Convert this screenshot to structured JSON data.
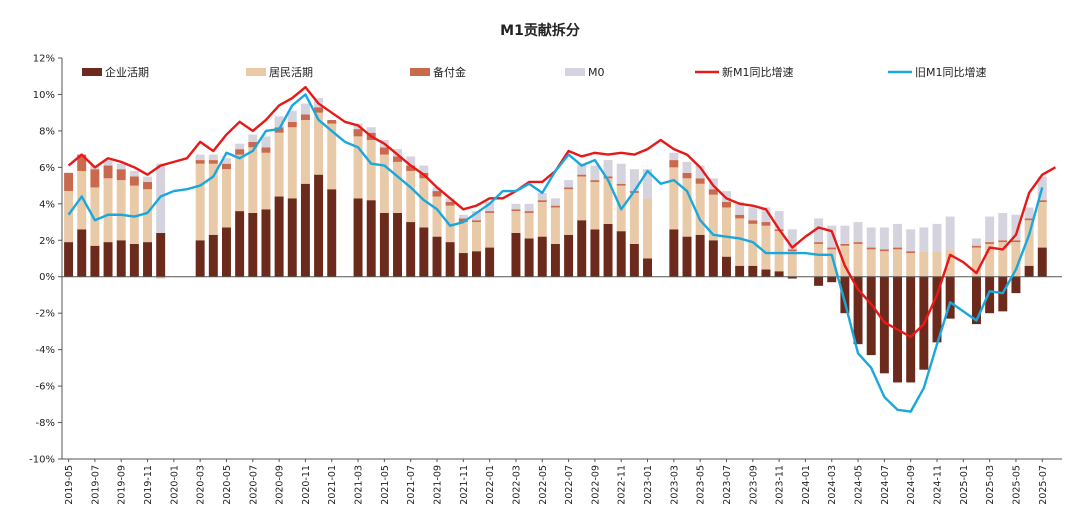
{
  "chart_data": {
    "type": "bar",
    "title": "M1贡献拆分",
    "xlabel": "",
    "ylabel": "",
    "ylim": [
      -10,
      12
    ],
    "y_ticks": [
      "-10%",
      "-8%",
      "-6%",
      "-4%",
      "-2%",
      "0%",
      "2%",
      "4%",
      "6%",
      "8%",
      "10%",
      "12%"
    ],
    "grid": false,
    "legend_position": "top",
    "x_tick_labels": [
      "2019-05",
      "2019-07",
      "2019-09",
      "2019-11",
      "2020-01",
      "2020-03",
      "2020-05",
      "2020-07",
      "2020-09",
      "2020-11",
      "2021-01",
      "2021-03",
      "2021-05",
      "2021-07",
      "2021-09",
      "2021-11",
      "2022-01",
      "2022-03",
      "2022-05",
      "2022-07",
      "2022-09",
      "2022-11",
      "2023-01",
      "2023-03",
      "2023-05",
      "2023-07",
      "2023-09",
      "2023-11",
      "2024-01",
      "2024-03",
      "2024-05",
      "2024-07",
      "2024-09",
      "2024-11",
      "2025-01",
      "2025-03",
      "2025-05",
      "2025-07"
    ],
    "x": [
      "2019-05",
      "2019-06",
      "2019-07",
      "2019-08",
      "2019-09",
      "2019-10",
      "2019-11",
      "2019-12",
      "2020-01",
      "2020-02",
      "2020-03",
      "2020-04",
      "2020-05",
      "2020-06",
      "2020-07",
      "2020-08",
      "2020-09",
      "2020-10",
      "2020-11",
      "2020-12",
      "2021-01",
      "2021-02",
      "2021-03",
      "2021-04",
      "2021-05",
      "2021-06",
      "2021-07",
      "2021-08",
      "2021-09",
      "2021-10",
      "2021-11",
      "2021-12",
      "2022-01",
      "2022-02",
      "2022-03",
      "2022-04",
      "2022-05",
      "2022-06",
      "2022-07",
      "2022-08",
      "2022-09",
      "2022-10",
      "2022-11",
      "2022-12",
      "2023-01",
      "2023-02",
      "2023-03",
      "2023-04",
      "2023-05",
      "2023-06",
      "2023-07",
      "2023-08",
      "2023-09",
      "2023-10",
      "2023-11",
      "2023-12",
      "2024-01",
      "2024-02",
      "2024-03",
      "2024-04",
      "2024-05",
      "2024-06",
      "2024-07",
      "2024-08",
      "2024-09",
      "2024-10",
      "2024-11",
      "2024-12",
      "2025-01",
      "2025-02",
      "2025-03",
      "2025-04",
      "2025-05",
      "2025-06",
      "2025-07",
      "2025-08"
    ],
    "bar_series": [
      {
        "name": "企业活期",
        "color": "#6b2a1c",
        "values": [
          1.9,
          2.6,
          1.7,
          1.9,
          2.0,
          1.8,
          1.9,
          2.4,
          null,
          null,
          2.0,
          2.3,
          2.7,
          3.6,
          3.5,
          3.7,
          4.4,
          4.3,
          5.1,
          5.6,
          4.8,
          null,
          4.3,
          4.2,
          3.5,
          3.5,
          3.0,
          2.7,
          2.2,
          1.9,
          1.3,
          1.4,
          1.6,
          null,
          2.4,
          2.1,
          2.2,
          1.8,
          2.3,
          3.1,
          2.6,
          2.9,
          2.5,
          1.8,
          1.0,
          null,
          2.6,
          2.2,
          2.3,
          2.0,
          1.1,
          0.6,
          0.6,
          0.4,
          0.3,
          -0.1,
          null,
          -0.5,
          -0.3,
          -2.0,
          -3.7,
          -4.3,
          -5.3,
          -5.8,
          -5.8,
          -5.1,
          -3.6,
          -2.3,
          null,
          -2.6,
          -2.0,
          -1.9,
          -0.9,
          0.6,
          1.6,
          null
        ]
      },
      {
        "name": "居民活期",
        "color": "#e8c9a8",
        "values": [
          2.8,
          3.2,
          3.2,
          3.5,
          3.3,
          3.2,
          2.9,
          -0.1,
          null,
          null,
          4.2,
          3.9,
          3.2,
          3.1,
          3.6,
          3.1,
          3.5,
          3.9,
          3.5,
          3.4,
          3.6,
          null,
          3.4,
          3.3,
          3.2,
          2.8,
          2.8,
          2.7,
          2.2,
          2.0,
          1.7,
          1.6,
          1.9,
          null,
          1.2,
          1.4,
          1.9,
          2.0,
          2.5,
          2.4,
          2.6,
          2.5,
          2.5,
          2.8,
          3.3,
          null,
          3.4,
          3.2,
          2.8,
          2.5,
          2.7,
          2.6,
          2.3,
          2.4,
          2.2,
          1.4,
          null,
          1.8,
          1.5,
          1.7,
          1.8,
          1.5,
          1.4,
          1.5,
          1.3,
          1.4,
          1.4,
          1.5,
          null,
          1.6,
          1.8,
          1.9,
          1.9,
          2.5,
          2.5,
          null
        ]
      },
      {
        "name": "备付金",
        "color": "#c96a4e",
        "values": [
          1.0,
          0.9,
          1.0,
          0.7,
          0.6,
          0.5,
          0.4,
          0.0,
          null,
          null,
          0.2,
          0.2,
          0.3,
          0.3,
          0.3,
          0.3,
          0.3,
          0.3,
          0.3,
          0.3,
          0.2,
          null,
          0.4,
          0.4,
          0.4,
          0.3,
          0.3,
          0.3,
          0.3,
          0.2,
          0.2,
          0.1,
          0.1,
          null,
          0.1,
          0.1,
          0.1,
          0.1,
          0.1,
          0.1,
          0.1,
          0.1,
          0.1,
          0.1,
          0.0,
          null,
          0.4,
          0.3,
          0.3,
          0.3,
          0.3,
          0.2,
          0.2,
          0.2,
          0.1,
          0.1,
          null,
          0.1,
          0.1,
          0.1,
          0.1,
          0.1,
          0.1,
          0.1,
          0.1,
          0.0,
          0.0,
          0.0,
          null,
          0.1,
          0.1,
          0.1,
          0.1,
          0.1,
          0.1,
          null
        ]
      },
      {
        "name": "M0",
        "color": "#d5d4de",
        "values": [
          0.0,
          0.0,
          0.2,
          0.3,
          0.3,
          0.3,
          0.3,
          3.8,
          null,
          null,
          0.3,
          0.3,
          0.3,
          0.3,
          0.4,
          0.6,
          0.6,
          0.6,
          0.6,
          0.5,
          0.0,
          null,
          0.3,
          0.3,
          0.4,
          0.4,
          0.5,
          0.4,
          0.2,
          0.2,
          0.2,
          0.5,
          0.5,
          null,
          0.3,
          0.4,
          0.4,
          0.4,
          0.4,
          0.6,
          0.8,
          0.9,
          1.1,
          1.2,
          1.6,
          null,
          0.4,
          0.6,
          0.7,
          0.6,
          0.6,
          0.7,
          0.7,
          0.8,
          1.0,
          1.1,
          null,
          1.3,
          1.2,
          1.0,
          1.1,
          1.1,
          1.2,
          1.3,
          1.2,
          1.3,
          1.5,
          1.8,
          null,
          0.4,
          1.4,
          1.5,
          1.4,
          0.6,
          1.3,
          null
        ]
      }
    ],
    "line_series": [
      {
        "name": "新M1同比增速",
        "color": "#e81818",
        "values": [
          6.1,
          6.7,
          6.0,
          6.5,
          6.3,
          6.0,
          5.6,
          6.1,
          6.3,
          6.5,
          7.4,
          6.9,
          7.8,
          8.5,
          8.0,
          8.6,
          9.4,
          9.8,
          10.4,
          9.5,
          9.0,
          8.5,
          8.3,
          7.7,
          7.3,
          6.7,
          6.1,
          5.6,
          4.9,
          4.3,
          3.7,
          3.9,
          4.3,
          4.3,
          4.7,
          5.2,
          5.2,
          5.8,
          6.9,
          6.6,
          6.8,
          6.7,
          6.8,
          6.7,
          7.0,
          7.5,
          7.0,
          6.7,
          6.0,
          5.0,
          4.3,
          4.0,
          3.9,
          3.7,
          2.6,
          1.6,
          2.2,
          2.7,
          2.5,
          0.6,
          -0.7,
          -1.5,
          -2.5,
          -2.9,
          -3.3,
          -2.6,
          -1.0,
          1.2,
          0.8,
          0.2,
          1.6,
          1.5,
          2.3,
          4.6,
          5.6,
          6.0
        ]
      },
      {
        "name": "旧M1同比增速",
        "color": "#1aa8dc",
        "values": [
          3.4,
          4.4,
          3.1,
          3.4,
          3.4,
          3.3,
          3.5,
          4.4,
          4.7,
          4.8,
          5.0,
          5.5,
          6.8,
          6.5,
          6.9,
          8.0,
          8.1,
          9.4,
          10.0,
          8.6,
          8.0,
          7.4,
          7.1,
          6.2,
          6.1,
          5.5,
          4.9,
          4.2,
          3.7,
          2.8,
          3.0,
          3.5,
          4.0,
          4.7,
          4.7,
          5.1,
          4.6,
          5.8,
          6.7,
          6.1,
          6.4,
          5.3,
          3.7,
          4.7,
          5.8,
          5.1,
          5.3,
          4.7,
          3.1,
          2.3,
          2.2,
          2.1,
          1.9,
          1.3,
          1.3,
          1.3,
          1.3,
          1.2,
          1.2,
          -1.4,
          -4.2,
          -5.0,
          -6.6,
          -7.3,
          -7.4,
          -6.1,
          -3.7,
          -1.4,
          -1.9,
          -2.4,
          -0.8,
          -0.9,
          0.4,
          2.3,
          4.9,
          null
        ]
      }
    ]
  }
}
